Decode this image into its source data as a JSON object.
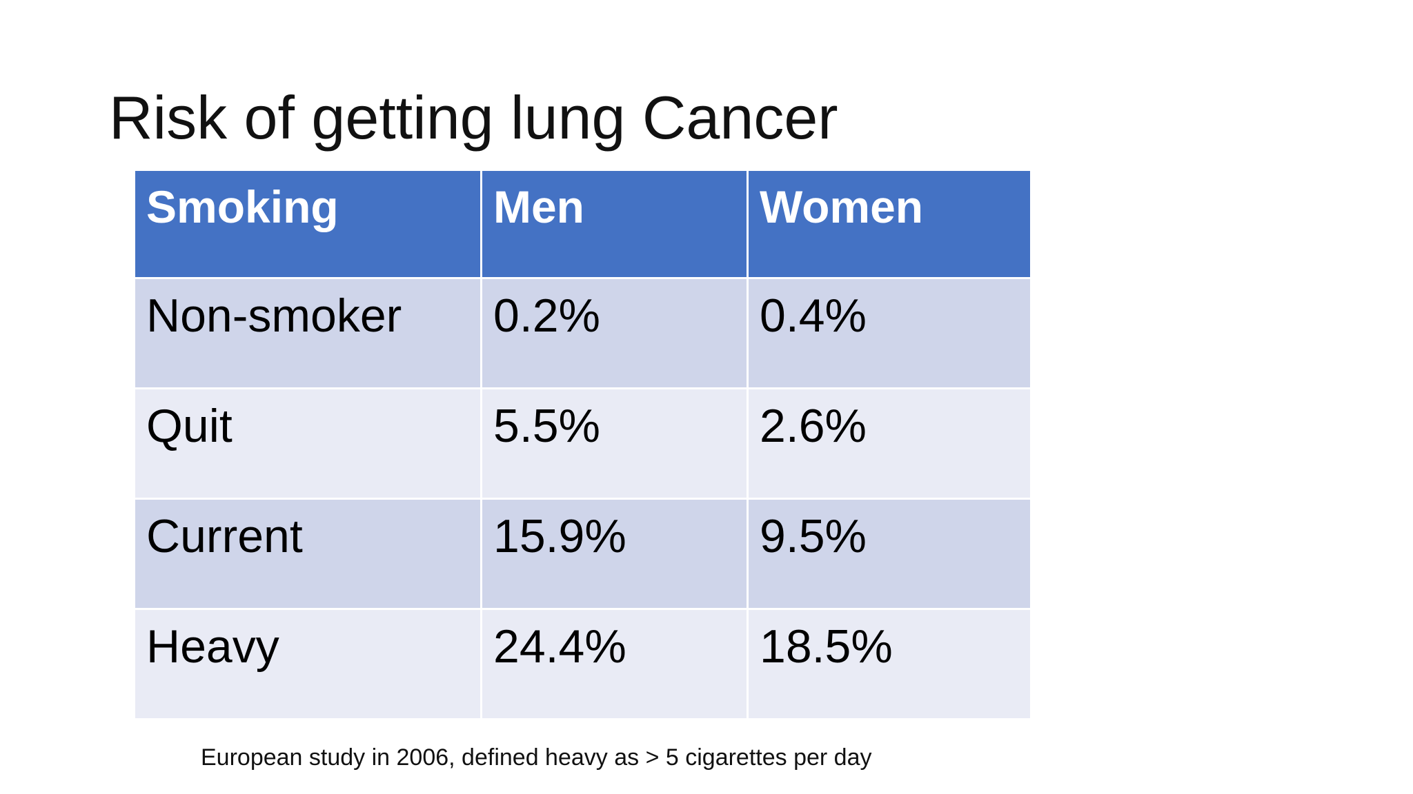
{
  "slide": {
    "title": "Risk of getting lung Cancer",
    "table": {
      "headers": [
        "Smoking",
        "Men",
        "Women"
      ],
      "rows": [
        [
          "Non-smoker",
          "0.2%",
          "0.4%"
        ],
        [
          "Quit",
          "5.5%",
          "2.6%"
        ],
        [
          "Current",
          "15.9%",
          "9.5%"
        ],
        [
          "Heavy",
          "24.4%",
          "18.5%"
        ]
      ]
    },
    "footnote": "European study in 2006, defined heavy as > 5 cigarettes per day",
    "colors": {
      "header_bg": "#4472c4",
      "row_band_dark": "#cfd5ea",
      "row_band_light": "#e9ebf5"
    }
  }
}
